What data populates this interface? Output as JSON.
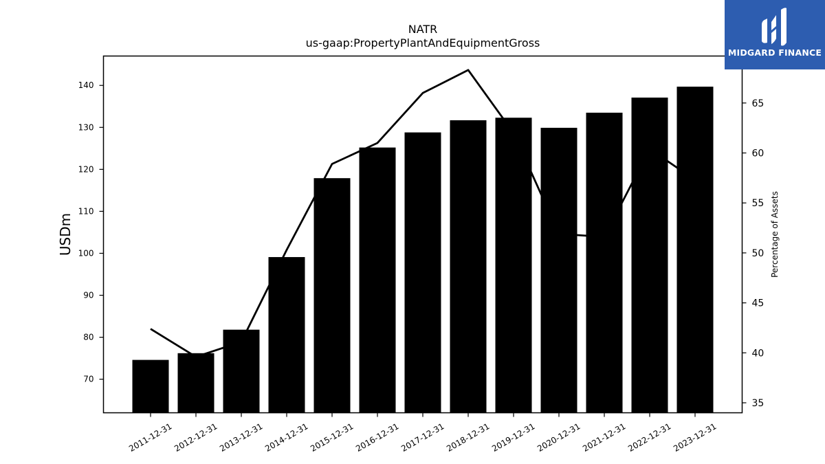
{
  "chart_data": {
    "type": "bar",
    "title": "NATR",
    "subtitle": "us-gaap:PropertyPlantAndEquipmentGross",
    "ylabel": "USDm",
    "y2label": "Percentage of Assets",
    "categories": [
      "2011-12-31",
      "2012-12-31",
      "2013-12-31",
      "2014-12-31",
      "2015-12-31",
      "2016-12-31",
      "2017-12-31",
      "2018-12-31",
      "2019-12-31",
      "2020-12-31",
      "2021-12-31",
      "2022-12-31",
      "2023-12-31"
    ],
    "series": [
      {
        "type": "bar",
        "axis": "left",
        "values": [
          74.6,
          76.2,
          81.8,
          99.1,
          117.9,
          125.2,
          128.8,
          131.7,
          132.3,
          129.9,
          133.5,
          137.1,
          139.7
        ]
      },
      {
        "type": "line",
        "axis": "right",
        "values": [
          42.4,
          39.6,
          41.1,
          50.3,
          58.9,
          61.0,
          66.0,
          68.3,
          62.0,
          51.9,
          51.6,
          60.4,
          57.3
        ]
      }
    ],
    "ylim": [
      62,
      147
    ],
    "y2lim": [
      34,
      69.7
    ],
    "yticks": [
      70,
      80,
      90,
      100,
      110,
      120,
      130,
      140
    ],
    "y2ticks": [
      35,
      40,
      45,
      50,
      55,
      60,
      65
    ],
    "colors": {
      "bar": "#000000",
      "line": "#000000"
    },
    "grid": false,
    "legend": "none"
  },
  "logo": {
    "text": "MIDGARD FINANCE",
    "bg": "#2d5db0"
  }
}
